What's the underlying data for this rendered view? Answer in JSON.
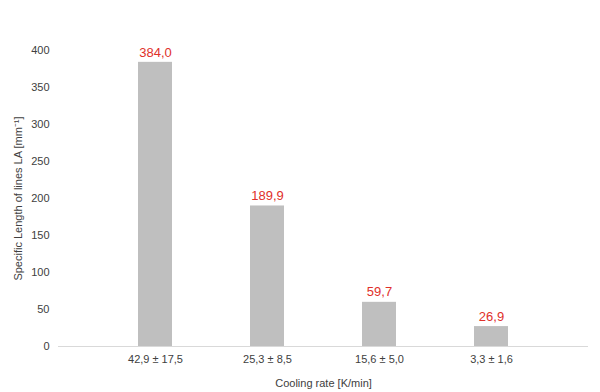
{
  "chart_data": {
    "type": "bar",
    "categories": [
      "42,9 ± 17,5",
      "25,3 ± 8,5",
      "15,6 ± 5,0",
      "3,3 ± 1,6"
    ],
    "values": [
      384.0,
      189.9,
      59.7,
      26.9
    ],
    "value_labels": [
      "384,0",
      "189,9",
      "59,7",
      "26,9"
    ],
    "data_labels": true,
    "color": "#bfbfbf",
    "x_label": "Cooling rate [K/min]",
    "y_label": "Specific Length of lines LA [mm⁻¹]",
    "ylim": [
      0,
      400
    ],
    "yticks": [
      0,
      50,
      100,
      150,
      200,
      250,
      300,
      350,
      400
    ],
    "grid": false
  }
}
